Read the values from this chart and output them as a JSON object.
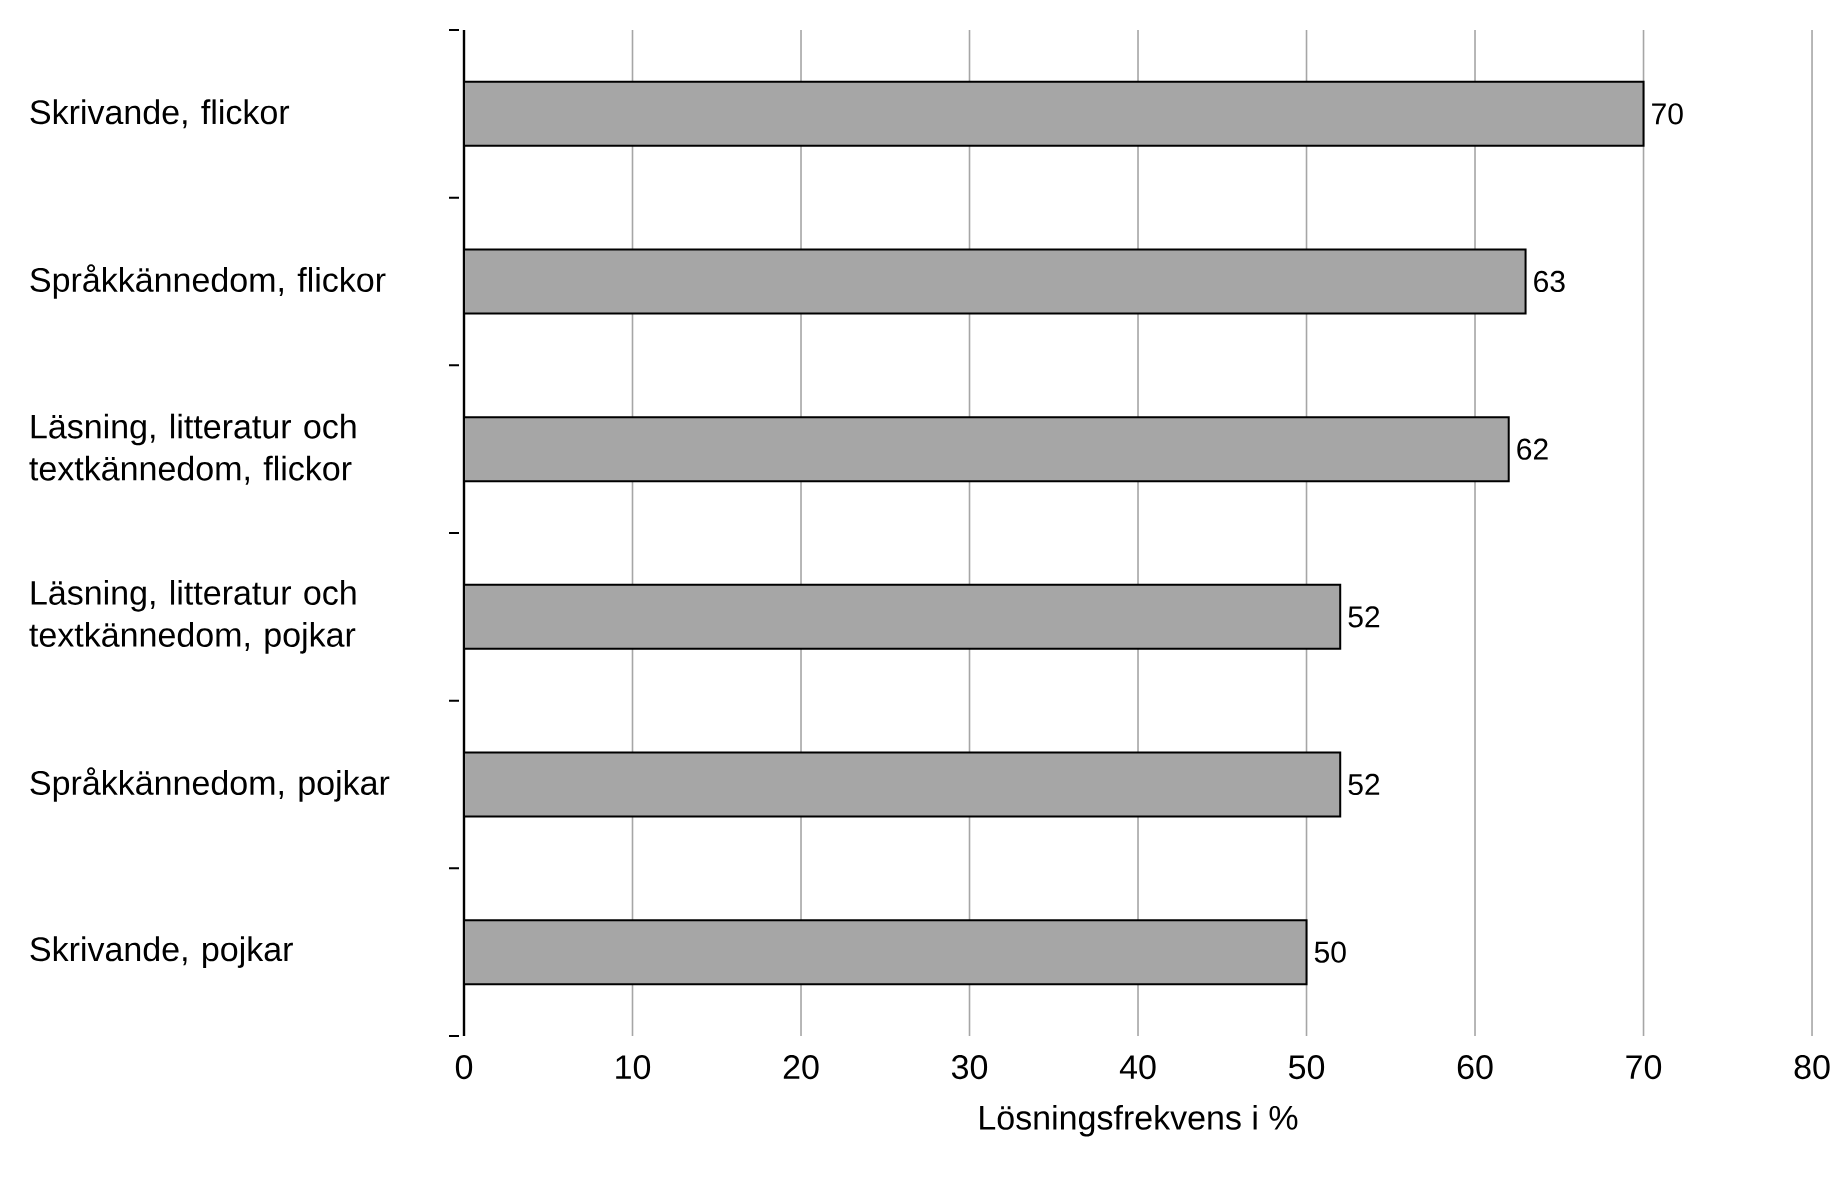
{
  "chart_data": {
    "type": "bar",
    "orientation": "horizontal",
    "xlabel": "Lösningsfrekvens i %",
    "categories": [
      "Skrivande, flickor",
      "Språkkännedom, flickor",
      "Läsning, litteratur och textkännedom, flickor",
      "Läsning, litteratur och textkännedom, pojkar",
      "Språkkännedom, pojkar",
      "Skrivande, pojkar"
    ],
    "values": [
      70,
      63,
      62,
      52,
      52,
      50
    ],
    "color": "#a6a6a6",
    "xlim": [
      0,
      80
    ],
    "xticks": [
      0,
      10,
      20,
      30,
      40,
      50,
      60,
      70,
      80
    ],
    "grid": "x",
    "data_labels": true
  }
}
